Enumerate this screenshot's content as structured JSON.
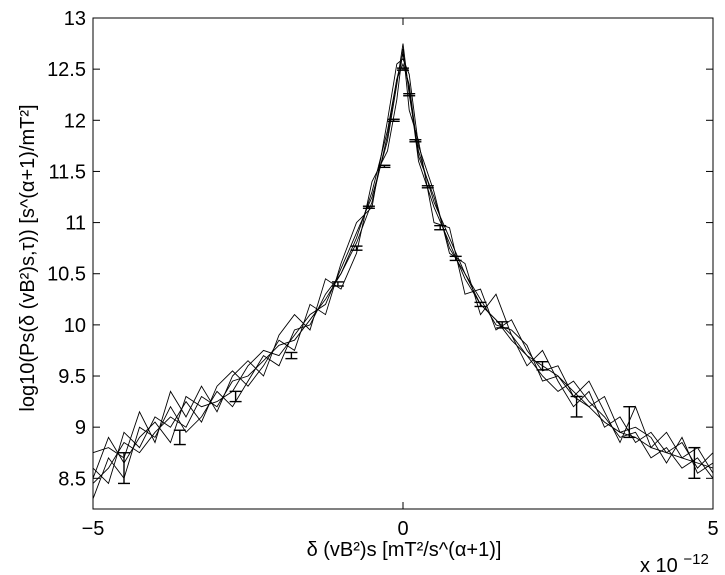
{
  "chart_data": {
    "type": "line",
    "title": "",
    "xlabel": "δ (vB²)s [mT²/s^(α+1)]",
    "ylabel": "log10(Ps(δ (vB²)s,τ)) [s^(α+1)/mT²]",
    "x_multiplier_label": "x 10",
    "x_multiplier_exponent": "−12",
    "xlim": [
      -5,
      5
    ],
    "ylim": [
      8.2,
      13
    ],
    "xticks": [
      -5,
      0,
      5
    ],
    "xtick_labels": [
      "−5",
      "0",
      "5"
    ],
    "yticks": [
      8.5,
      9,
      9.5,
      10,
      10.5,
      11,
      11.5,
      12,
      12.5,
      13
    ],
    "ytick_labels": [
      "8.5",
      "9",
      "9.5",
      "10",
      "10.5",
      "11",
      "11.5",
      "12",
      "12.5",
      "13"
    ],
    "grid": false,
    "legend": "none",
    "line_color": "#000000",
    "series": [
      {
        "x": [
          -5,
          -4.75,
          -4.5,
          -4.25,
          -4,
          -3.75,
          -3.5,
          -3.25,
          -3,
          -2.75,
          -2.5,
          -2.25,
          -2,
          -1.75,
          -1.5,
          -1.25,
          -1,
          -0.75,
          -0.5,
          -0.25,
          -0.1,
          0,
          0.1,
          0.25,
          0.5,
          0.75,
          1,
          1.25,
          1.5,
          1.75,
          2,
          2.25,
          2.5,
          2.75,
          3,
          3.25,
          3.5,
          3.75,
          4,
          4.25,
          4.5,
          4.75,
          5
        ],
        "y": [
          8.3,
          8.7,
          8.5,
          9.0,
          8.9,
          9.2,
          8.95,
          9.1,
          9.35,
          9.2,
          9.45,
          9.7,
          9.6,
          9.95,
          10.0,
          10.3,
          10.5,
          10.85,
          11.3,
          11.9,
          12.4,
          12.65,
          12.3,
          11.6,
          11.15,
          10.8,
          10.45,
          10.2,
          10.05,
          9.85,
          9.7,
          9.5,
          9.35,
          9.45,
          9.25,
          9.1,
          8.9,
          8.95,
          8.7,
          8.8,
          8.6,
          8.7,
          8.5
        ]
      },
      {
        "x": [
          -5,
          -4.75,
          -4.5,
          -4.25,
          -4,
          -3.75,
          -3.5,
          -3.25,
          -3,
          -2.75,
          -2.5,
          -2.25,
          -2,
          -1.75,
          -1.5,
          -1.25,
          -1,
          -0.75,
          -0.5,
          -0.25,
          -0.1,
          0,
          0.1,
          0.25,
          0.5,
          0.75,
          1,
          1.25,
          1.5,
          1.75,
          2,
          2.25,
          2.5,
          2.75,
          3,
          3.25,
          3.5,
          3.75,
          4,
          4.25,
          4.5,
          4.75,
          5
        ],
        "y": [
          8.6,
          8.45,
          8.95,
          8.8,
          9.1,
          9.0,
          9.25,
          9.05,
          9.4,
          9.55,
          9.4,
          9.6,
          9.85,
          9.75,
          10.2,
          10.1,
          10.6,
          11.0,
          11.15,
          12.0,
          12.55,
          12.6,
          12.45,
          11.75,
          11.3,
          10.7,
          10.6,
          10.1,
          10.3,
          9.9,
          9.6,
          9.75,
          9.45,
          9.2,
          9.35,
          9.0,
          9.1,
          8.85,
          8.95,
          8.75,
          8.85,
          8.6,
          8.75
        ]
      },
      {
        "x": [
          -5,
          -4.75,
          -4.5,
          -4.25,
          -4,
          -3.75,
          -3.5,
          -3.25,
          -3,
          -2.75,
          -2.5,
          -2.25,
          -2,
          -1.75,
          -1.5,
          -1.25,
          -1,
          -0.75,
          -0.5,
          -0.25,
          -0.1,
          0,
          0.1,
          0.25,
          0.5,
          0.75,
          1,
          1.25,
          1.5,
          1.75,
          2,
          2.25,
          2.5,
          2.75,
          3,
          3.25,
          3.5,
          3.75,
          4,
          4.25,
          4.5,
          4.75,
          5
        ],
        "y": [
          8.75,
          8.8,
          8.7,
          9.15,
          8.85,
          9.35,
          9.1,
          9.4,
          9.15,
          9.5,
          9.65,
          9.5,
          9.9,
          10.1,
          9.95,
          10.45,
          10.35,
          10.7,
          11.4,
          11.7,
          12.2,
          12.7,
          12.1,
          11.8,
          11.0,
          10.95,
          10.3,
          10.35,
          9.95,
          10.05,
          9.75,
          9.55,
          9.6,
          9.3,
          9.45,
          9.15,
          8.85,
          9.2,
          8.8,
          8.95,
          8.7,
          8.8,
          8.55
        ]
      },
      {
        "x": [
          -5,
          -4.75,
          -4.5,
          -4.25,
          -4,
          -3.75,
          -3.5,
          -3.25,
          -3,
          -2.75,
          -2.5,
          -2.25,
          -2,
          -1.75,
          -1.5,
          -1.25,
          -1,
          -0.75,
          -0.5,
          -0.25,
          -0.1,
          0,
          0.1,
          0.25,
          0.5,
          0.75,
          1,
          1.25,
          1.5,
          1.75,
          2,
          2.25,
          2.5,
          2.75,
          3,
          3.25,
          3.5,
          3.75,
          4,
          4.25,
          4.5,
          4.75,
          5
        ],
        "y": [
          8.5,
          8.9,
          8.65,
          8.9,
          9.05,
          8.85,
          9.3,
          9.2,
          9.25,
          9.35,
          9.6,
          9.75,
          9.7,
          9.9,
          10.1,
          10.2,
          10.55,
          10.9,
          11.25,
          11.8,
          12.35,
          12.75,
          12.25,
          11.7,
          11.2,
          10.85,
          10.5,
          10.25,
          10.0,
          9.95,
          9.8,
          9.45,
          9.5,
          9.35,
          9.2,
          9.3,
          8.95,
          9.0,
          8.9,
          8.65,
          8.9,
          8.55,
          8.65
        ]
      },
      {
        "x": [
          -5,
          -4.75,
          -4.5,
          -4.25,
          -4,
          -3.75,
          -3.5,
          -3.25,
          -3,
          -2.75,
          -2.5,
          -2.25,
          -2,
          -1.75,
          -1.5,
          -1.25,
          -1,
          -0.75,
          -0.5,
          -0.25,
          -0.1,
          0,
          0.1,
          0.25,
          0.5,
          0.75,
          1,
          1.25,
          1.5,
          1.75,
          2,
          2.25,
          2.5,
          2.75,
          3,
          3.25,
          3.5,
          3.75,
          4,
          4.25,
          4.5,
          4.75,
          5
        ],
        "y": [
          8.45,
          8.6,
          8.85,
          8.75,
          8.95,
          9.1,
          9.0,
          9.3,
          9.2,
          9.45,
          9.5,
          9.65,
          9.8,
          9.85,
          10.05,
          10.25,
          10.5,
          10.8,
          11.2,
          11.85,
          12.4,
          12.55,
          12.35,
          11.65,
          11.25,
          10.75,
          10.5,
          10.2,
          10.05,
          9.9,
          9.7,
          9.6,
          9.5,
          9.3,
          9.2,
          9.05,
          8.95,
          8.9,
          8.8,
          8.75,
          8.7,
          8.65,
          8.6
        ]
      }
    ],
    "error_bars": [
      {
        "x": -4.5,
        "y": 8.6,
        "err": 0.15
      },
      {
        "x": -3.6,
        "y": 8.9,
        "err": 0.07
      },
      {
        "x": -2.7,
        "y": 9.3,
        "err": 0.05
      },
      {
        "x": -1.8,
        "y": 9.7,
        "err": 0.03
      },
      {
        "x": -1.05,
        "y": 10.4,
        "err": 0.02
      },
      {
        "x": -0.75,
        "y": 10.75,
        "err": 0.02
      },
      {
        "x": -0.55,
        "y": 11.15,
        "err": 0.01
      },
      {
        "x": -0.3,
        "y": 11.55,
        "err": 0.01
      },
      {
        "x": -0.15,
        "y": 12.0,
        "err": 0.01
      },
      {
        "x": 0.0,
        "y": 12.5,
        "err": 0.01
      },
      {
        "x": 0.1,
        "y": 12.25,
        "err": 0.01
      },
      {
        "x": 0.2,
        "y": 11.8,
        "err": 0.01
      },
      {
        "x": 0.4,
        "y": 11.35,
        "err": 0.01
      },
      {
        "x": 0.6,
        "y": 10.95,
        "err": 0.02
      },
      {
        "x": 0.85,
        "y": 10.65,
        "err": 0.02
      },
      {
        "x": 1.25,
        "y": 10.2,
        "err": 0.02
      },
      {
        "x": 1.6,
        "y": 10.0,
        "err": 0.03
      },
      {
        "x": 2.25,
        "y": 9.6,
        "err": 0.04
      },
      {
        "x": 2.8,
        "y": 9.2,
        "err": 0.1
      },
      {
        "x": 3.65,
        "y": 9.05,
        "err": 0.15
      },
      {
        "x": 4.7,
        "y": 8.65,
        "err": 0.15
      }
    ]
  }
}
